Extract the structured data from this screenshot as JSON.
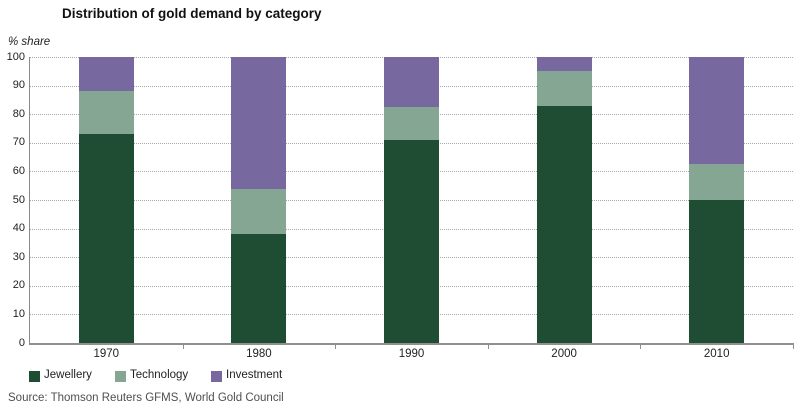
{
  "header": {
    "title": "Distribution of gold demand by category"
  },
  "chart_data": {
    "type": "bar",
    "stacked": true,
    "title": "Distribution of gold demand by category",
    "ylabel": "% share",
    "xlabel": "",
    "ylim": [
      0,
      100
    ],
    "ytick_step": 10,
    "grid": "horizontal-dotted",
    "legend_position": "bottom-left",
    "categories": [
      "1970",
      "1980",
      "1990",
      "2000",
      "2010"
    ],
    "series": [
      {
        "name": "Jewellery",
        "color": "#1e4d34",
        "values": [
          73,
          38,
          71,
          83,
          50
        ]
      },
      {
        "name": "Technology",
        "color": "#85a693",
        "values": [
          15,
          16,
          11.5,
          12,
          12.5
        ]
      },
      {
        "name": "Investment",
        "color": "#77699f",
        "values": [
          12,
          46,
          17.5,
          5,
          37.5
        ]
      }
    ]
  },
  "source": {
    "text": "Source: Thomson Reuters GFMS, World Gold Council"
  }
}
